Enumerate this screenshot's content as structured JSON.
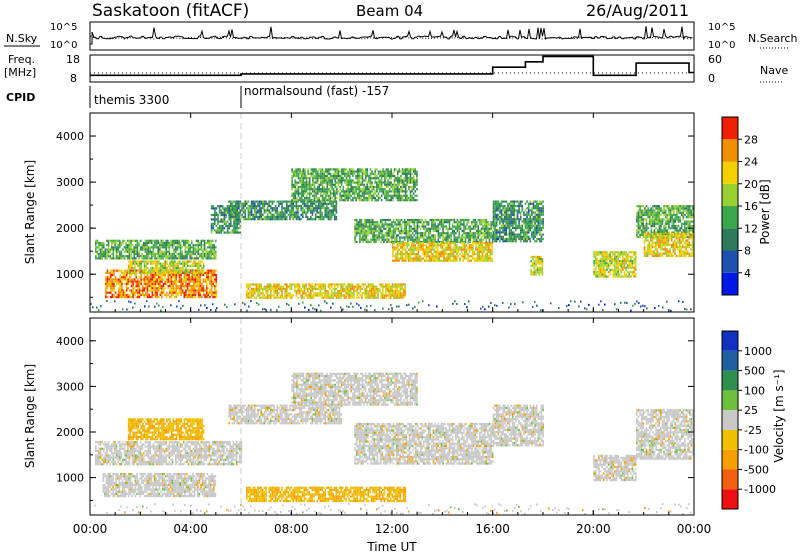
{
  "header": {
    "title": "Saskatoon (fitACF)",
    "beam": "Beam 04",
    "date": "26/Aug/2011"
  },
  "noise_panel": {
    "left_label": "N.Sky",
    "right_label": "N.Search",
    "left_ticks": [
      "10^5",
      "10^0"
    ],
    "right_ticks": [
      "10^5",
      "10^0"
    ]
  },
  "freq_panel": {
    "left_label_1": "Freq.",
    "left_label_2": "[MHz]",
    "left_ticks": [
      "18",
      "8"
    ],
    "right_label": "Nave",
    "right_ticks": [
      "60",
      "0"
    ]
  },
  "cpid_panel": {
    "label": "CPID",
    "segments": [
      {
        "text": "themis 3300",
        "start_hour": 0
      },
      {
        "text": "normalsound (fast) -157",
        "start_hour": 6
      }
    ]
  },
  "x_axis": {
    "label": "Time UT",
    "ticks": [
      "00:00",
      "04:00",
      "08:00",
      "12:00",
      "16:00",
      "20:00",
      "00:00"
    ],
    "range_hours": [
      0,
      24
    ]
  },
  "power_panel": {
    "ylabel": "Slant Range [km]",
    "y_ticks": [
      "1000",
      "2000",
      "3000",
      "4000"
    ],
    "colorbar_title": "Power [dB]",
    "colorbar_ticks": [
      "4",
      "8",
      "12",
      "16",
      "20",
      "24",
      "28"
    ],
    "colors": [
      "#0018e6",
      "#1f4fb0",
      "#2f7a5a",
      "#3aa84a",
      "#9ad030",
      "#f5d000",
      "#f09000",
      "#ee2000"
    ]
  },
  "velocity_panel": {
    "ylabel": "Slant Range [km]",
    "y_ticks": [
      "1000",
      "2000",
      "3000",
      "4000"
    ],
    "colorbar_title": "Velocity [m s⁻¹]",
    "colorbar_ticks": [
      "-1000",
      "-500",
      "-100",
      "-25",
      "25",
      "100",
      "500",
      "1000"
    ],
    "colors": [
      "#ee1010",
      "#f06010",
      "#f5a000",
      "#f0c000",
      "#c8c8c8",
      "#70c040",
      "#2f8f4f",
      "#2060a0",
      "#1030c0"
    ]
  },
  "chart_data": {
    "type": "heatmap",
    "title": "Saskatoon (fitACF) Beam 04 26/Aug/2011",
    "xlabel": "Time UT",
    "ylabel": "Slant Range [km]",
    "xlim": [
      0,
      24
    ],
    "ylim": [
      180,
      4500
    ],
    "power_regions": [
      {
        "t0": 0.2,
        "t1": 5.0,
        "r0": 1350,
        "r1": 1750,
        "value": 14
      },
      {
        "t0": 0.6,
        "t1": 5.0,
        "r0": 500,
        "r1": 1100,
        "value": 26
      },
      {
        "t0": 1.5,
        "t1": 4.5,
        "r0": 1050,
        "r1": 1300,
        "value": 20
      },
      {
        "t0": 4.8,
        "t1": 6.0,
        "r0": 1900,
        "r1": 2500,
        "value": 12
      },
      {
        "t0": 5.5,
        "t1": 9.8,
        "r0": 2200,
        "r1": 2600,
        "value": 12
      },
      {
        "t0": 6.2,
        "t1": 12.5,
        "r0": 500,
        "r1": 800,
        "value": 22
      },
      {
        "t0": 8.0,
        "t1": 13.0,
        "r0": 2600,
        "r1": 3300,
        "value": 14
      },
      {
        "t0": 10.5,
        "t1": 16.0,
        "r0": 1700,
        "r1": 2200,
        "value": 14
      },
      {
        "t0": 12.0,
        "t1": 16.0,
        "r0": 1300,
        "r1": 1700,
        "value": 22
      },
      {
        "t0": 16.0,
        "t1": 18.0,
        "r0": 1700,
        "r1": 2600,
        "value": 12
      },
      {
        "t0": 17.5,
        "t1": 18.0,
        "r0": 1000,
        "r1": 1400,
        "value": 20
      },
      {
        "t0": 20.0,
        "t1": 21.7,
        "r0": 950,
        "r1": 1500,
        "value": 20
      },
      {
        "t0": 21.7,
        "t1": 24.0,
        "r0": 1800,
        "r1": 2500,
        "value": 14
      },
      {
        "t0": 22.0,
        "t1": 24.0,
        "r0": 1400,
        "r1": 1900,
        "value": 22
      }
    ],
    "velocity_regions": [
      {
        "t0": 0.2,
        "t1": 6.0,
        "r0": 1300,
        "r1": 1800,
        "value": 0
      },
      {
        "t0": 0.5,
        "t1": 5.0,
        "r0": 600,
        "r1": 1100,
        "value": 0
      },
      {
        "t0": 1.5,
        "t1": 4.5,
        "r0": 1850,
        "r1": 2300,
        "value": -150
      },
      {
        "t0": 5.5,
        "t1": 10.0,
        "r0": 2200,
        "r1": 2600,
        "value": 0
      },
      {
        "t0": 6.2,
        "t1": 12.5,
        "r0": 500,
        "r1": 800,
        "value": -150
      },
      {
        "t0": 8.0,
        "t1": 13.0,
        "r0": 2600,
        "r1": 3300,
        "value": 0
      },
      {
        "t0": 10.5,
        "t1": 16.0,
        "r0": 1300,
        "r1": 2200,
        "value": 0
      },
      {
        "t0": 16.0,
        "t1": 18.0,
        "r0": 1700,
        "r1": 2600,
        "value": 0
      },
      {
        "t0": 20.0,
        "t1": 21.7,
        "r0": 950,
        "r1": 1500,
        "value": 0
      },
      {
        "t0": 21.7,
        "t1": 24.0,
        "r0": 1400,
        "r1": 2500,
        "value": 0
      }
    ],
    "frequency_mhz": [
      {
        "t0": 0,
        "t1": 6,
        "value": 10.5
      },
      {
        "t0": 6,
        "t1": 16,
        "value": 11.0
      },
      {
        "t0": 16,
        "t1": 17.3,
        "value": 13.5
      },
      {
        "t0": 17.3,
        "t1": 18,
        "value": 15.5
      },
      {
        "t0": 18,
        "t1": 20,
        "value": 17.5
      },
      {
        "t0": 20,
        "t1": 21.7,
        "value": 10.5
      },
      {
        "t0": 21.7,
        "t1": 23.8,
        "value": 15.0
      },
      {
        "t0": 23.8,
        "t1": 24,
        "value": 11.5
      }
    ],
    "nave_level": 20
  }
}
